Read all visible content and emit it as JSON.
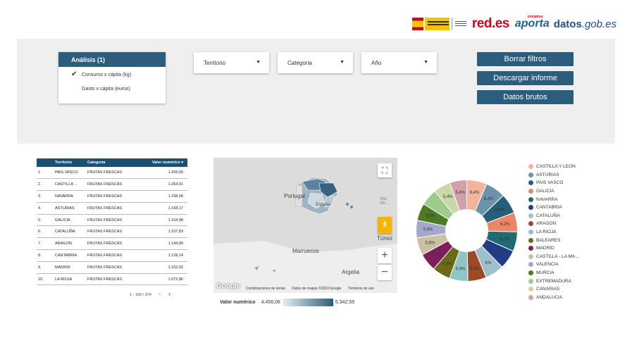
{
  "header": {
    "logo_red": "red",
    "logo_red_suffix": ".es",
    "logo_aporta": "aporta",
    "logo_aporta_sup": "iniciativa",
    "logo_datos": "datos",
    "logo_datos_suffix": ".gob.es"
  },
  "filters": {
    "analysis_title": "Análisis (1)",
    "analysis_options": [
      {
        "label": "Consumo x cápita (kg)",
        "checked": true
      },
      {
        "label": "Gasto x cápita (euros)",
        "checked": false
      }
    ],
    "dropdowns": [
      {
        "label": "Territorio"
      },
      {
        "label": "Categoria"
      },
      {
        "label": "Año"
      }
    ],
    "buttons": [
      "Borrar filtros",
      "Descargar informe",
      "Datos brutos"
    ]
  },
  "table": {
    "headers": [
      "",
      "Territorio",
      "Categoria",
      "Valor numérico ▾"
    ],
    "rows": [
      [
        "1.",
        "PAIS VASCO",
        "FRUTAS FRESCAS",
        "1.269,09"
      ],
      [
        "2.",
        "CASTILLA ...",
        "FRUTAS FRESCAS",
        "1.254,91"
      ],
      [
        "3.",
        "NAVARRA",
        "FRUTAS FRESCAS",
        "1.238,58"
      ],
      [
        "4.",
        "ASTURIAS",
        "FRUTAS FRESCAS",
        "1.168,17"
      ],
      [
        "5.",
        "GALICIA",
        "FRUTAS FRESCAS",
        "1.164,98"
      ],
      [
        "6.",
        "CATALUÑA",
        "FRUTAS FRESCAS",
        "1.157,83"
      ],
      [
        "7.",
        "ARAGON",
        "FRUTAS FRESCAS",
        "1.144,89"
      ],
      [
        "8.",
        "CANTABRIA",
        "FRUTAS FRESCAS",
        "1.128,14"
      ],
      [
        "9.",
        "MADRID",
        "FRUTAS FRESCAS",
        "1.102,92"
      ],
      [
        "10.",
        "LA RIOJA",
        "FRUTAS FRESCAS",
        "1.072,86"
      ]
    ],
    "pagination": "1 - 100 / 374"
  },
  "map": {
    "labels": {
      "portugal": "Portugal",
      "espana": "España",
      "marruecos": "Marruecos",
      "argelia": "Argelia",
      "tunez": "Túnez",
      "mar": "Mar Me..."
    },
    "google": "Google",
    "attribution": [
      "Combinaciones de teclas",
      "Datos de mapas ©2023 Google",
      "Términos de uso"
    ],
    "legend_title": "Valor numérico",
    "legend_min": "4.456,08",
    "legend_max": "5.342,59"
  },
  "chart_data": {
    "type": "pie",
    "donut": true,
    "slices": [
      {
        "name": "CASTILLA Y LEON",
        "value": 6.4,
        "label": "6,4%",
        "color": "#f4b39c"
      },
      {
        "name": "ASTURIAS",
        "value": 6.4,
        "label": "6,4%",
        "color": "#6b93ab"
      },
      {
        "name": "PAIS VASCO",
        "value": 6.4,
        "label": "6,4%",
        "color": "#255e79"
      },
      {
        "name": "GALICIA",
        "value": 6.2,
        "label": "6,2%",
        "color": "#ec8766"
      },
      {
        "name": "NAVARRA",
        "value": 6.2,
        "label": "6,2%",
        "color": "#1e6b72"
      },
      {
        "name": "CANTABRIA",
        "value": 6.1,
        "label": "6,1%",
        "color": "#233c87"
      },
      {
        "name": "CATALUÑA",
        "value": 6.0,
        "label": "6%",
        "color": "#9ebfcc"
      },
      {
        "name": "ARAGON",
        "value": 5.9,
        "label": "5,9%",
        "color": "#9b4a27"
      },
      {
        "name": "LA RIOJA",
        "value": 5.9,
        "label": "5,9%",
        "color": "#8fc6c5"
      },
      {
        "name": "BALEARES",
        "value": 5.8,
        "label": "5,8%",
        "color": "#6b6b17"
      },
      {
        "name": "MADRID",
        "value": 5.7,
        "label": "5,7%",
        "color": "#7e1f5c"
      },
      {
        "name": "CASTILLA - LA MA...",
        "value": 5.6,
        "label": "5,6%",
        "color": "#c9c1a1"
      },
      {
        "name": "VALENCIA",
        "value": 5.6,
        "label": "5,6%",
        "color": "#a5a8cb"
      },
      {
        "name": "MURCIA",
        "value": 5.5,
        "label": "5,5%",
        "color": "#4e7a25"
      },
      {
        "name": "EXTREMADURA",
        "value": 5.4,
        "label": "",
        "color": "#9ecb8c"
      },
      {
        "name": "CANARIAS",
        "value": 5.4,
        "label": "5,4%",
        "color": "#c9d8a8"
      },
      {
        "name": "ANDALUCIA",
        "value": 5.4,
        "label": "5,4%",
        "color": "#d2a0a8"
      }
    ]
  }
}
